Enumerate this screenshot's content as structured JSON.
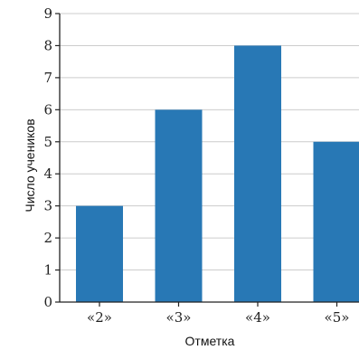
{
  "chart_data": {
    "type": "bar",
    "categories": [
      "«2»",
      "«3»",
      "«4»",
      "«5»"
    ],
    "values": [
      3,
      6,
      8,
      5
    ],
    "xlabel": "Отметка",
    "ylabel": "Число учеников",
    "ylim": [
      0,
      9
    ],
    "yticks": [
      0,
      1,
      2,
      3,
      4,
      5,
      6,
      7,
      8,
      9
    ],
    "grid": true,
    "bar_color": "#2878b5",
    "grid_color": "#cccccc",
    "axis_color": "#222222"
  }
}
